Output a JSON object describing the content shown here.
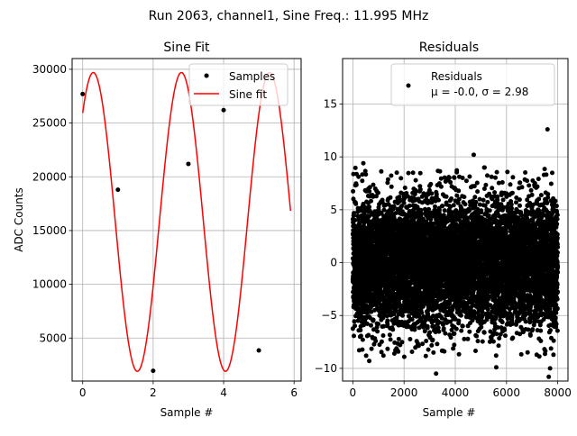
{
  "figure": {
    "suptitle": "Run 2063, channel1, Sine Freq.: 11.995 MHz"
  },
  "chart_data": [
    {
      "type": "scatter",
      "title": "Sine Fit",
      "xlabel": "Sample #",
      "ylabel": "ADC Counts",
      "xlim": [
        -0.3,
        6.2
      ],
      "ylim": [
        1000,
        31000
      ],
      "xticks": [
        0,
        2,
        4,
        6
      ],
      "yticks": [
        5000,
        10000,
        15000,
        20000,
        25000,
        30000
      ],
      "grid": true,
      "legend": {
        "placement": "upper right",
        "entries": [
          "Samples",
          "Sine fit"
        ]
      },
      "series": [
        {
          "name": "Samples",
          "kind": "points",
          "color": "#000000",
          "x": [
            0,
            1,
            2,
            3,
            3.53,
            4,
            5
          ],
          "y": [
            27700,
            18800,
            1950,
            21200,
            29400,
            26200,
            3850
          ]
        },
        {
          "name": "Sine fit",
          "kind": "line",
          "color": "#ff0000",
          "model": {
            "offset": 15800,
            "amplitude": 13900,
            "period": 2.502,
            "phase_sample": 0.3,
            "x_start": 0,
            "x_end": 5.9
          }
        }
      ]
    },
    {
      "type": "scatter",
      "title": "Residuals",
      "xlabel": "Sample #",
      "ylabel": "",
      "xlim": [
        -400,
        8400
      ],
      "ylim": [
        -11.2,
        19.3
      ],
      "xticks": [
        0,
        2000,
        4000,
        6000,
        8000
      ],
      "yticks": [
        -10,
        -5,
        0,
        5,
        10,
        15
      ],
      "grid": true,
      "legend": {
        "placement": "upper right",
        "entries": [
          "Residuals",
          "μ = -0.0, σ = 2.98"
        ]
      },
      "series": [
        {
          "name": "Residuals",
          "kind": "points",
          "color": "#000000",
          "stats": {
            "mean": -0.0,
            "std": 2.98,
            "n": 8000
          },
          "notable_x": [
            410,
            520,
            640,
            2350,
            3250,
            4720,
            5600,
            7600,
            7650,
            7700
          ],
          "notable_y": [
            9.4,
            -8.8,
            -9.3,
            8.5,
            -10.5,
            10.2,
            -9.9,
            12.6,
            -10.8,
            -10.0
          ]
        }
      ]
    }
  ]
}
